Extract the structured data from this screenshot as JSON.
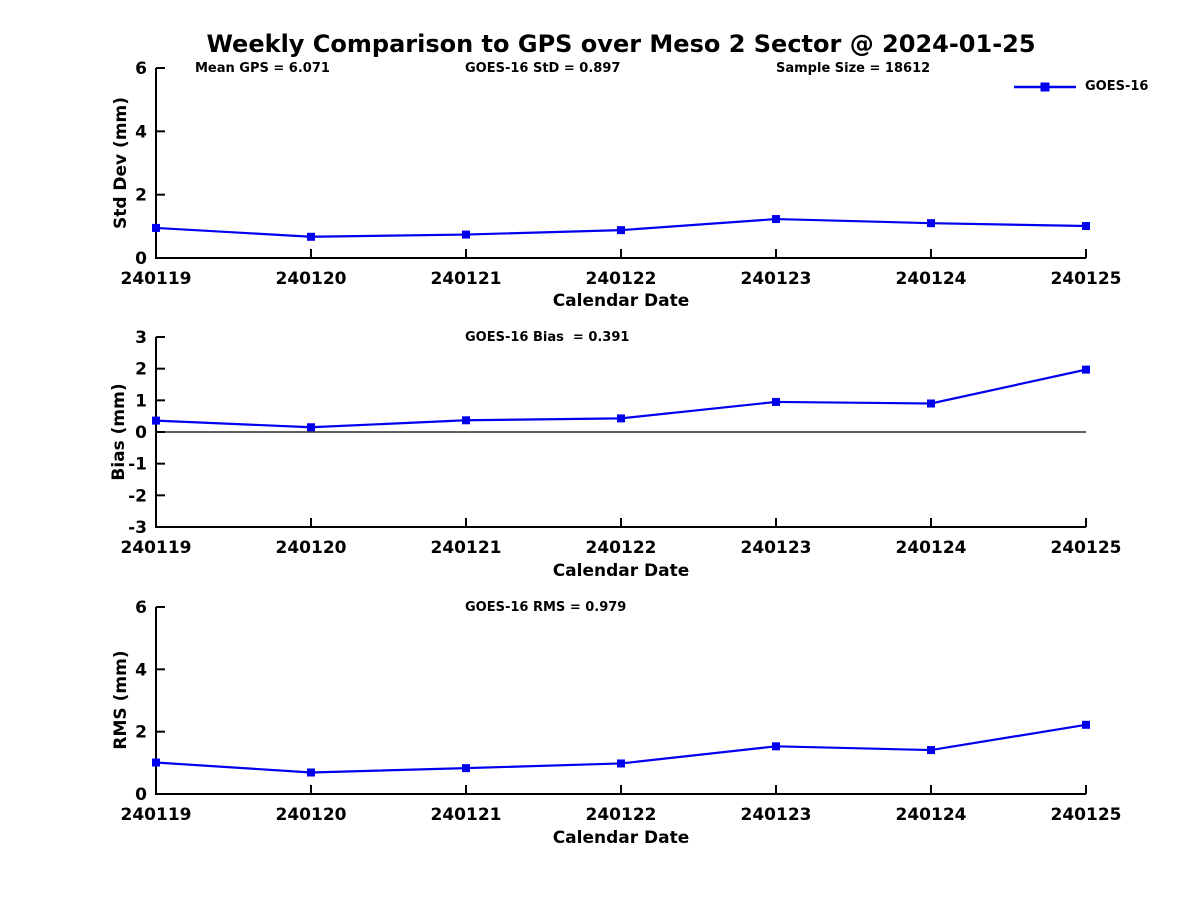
{
  "title": "Weekly Comparison to GPS over Meso 2 Sector @ 2024-01-25",
  "legend": {
    "label": "GOES-16",
    "position": "top-right"
  },
  "colors": {
    "line": "#0000EE",
    "marker": "#0000EE",
    "axis": "#000000",
    "text": "#000000",
    "zero_line": "#000000",
    "background": "#FFFFFF"
  },
  "chart_data": [
    {
      "type": "line",
      "name": "std-dev",
      "ylabel": "Std Dev (mm)",
      "xlabel": "Calendar Date",
      "categories": [
        "240119",
        "240120",
        "240121",
        "240122",
        "240123",
        "240124",
        "240125"
      ],
      "series": [
        {
          "name": "GOES-16",
          "color": "#0000EE",
          "marker": "square",
          "values": [
            0.95,
            0.67,
            0.74,
            0.88,
            1.23,
            1.1,
            1.01
          ]
        }
      ],
      "ylim": [
        0,
        6
      ],
      "yticks": [
        0,
        2,
        4,
        6
      ],
      "grid": false,
      "zero_line": false,
      "annotations": [
        "Mean GPS = 6.071",
        "GOES-16 StD = 0.897",
        "Sample Size = 18612"
      ]
    },
    {
      "type": "line",
      "name": "bias",
      "ylabel": "Bias (mm)",
      "xlabel": "Calendar Date",
      "categories": [
        "240119",
        "240120",
        "240121",
        "240122",
        "240123",
        "240124",
        "240125"
      ],
      "series": [
        {
          "name": "GOES-16",
          "color": "#0000EE",
          "marker": "square",
          "values": [
            0.36,
            0.15,
            0.37,
            0.43,
            0.95,
            0.9,
            1.97
          ]
        }
      ],
      "ylim": [
        -3,
        3
      ],
      "yticks": [
        -3,
        -2,
        -1,
        0,
        1,
        2,
        3
      ],
      "grid": false,
      "zero_line": true,
      "annotations": [
        "GOES-16 Bias  = 0.391"
      ]
    },
    {
      "type": "line",
      "name": "rms",
      "ylabel": "RMS (mm)",
      "xlabel": "Calendar Date",
      "categories": [
        "240119",
        "240120",
        "240121",
        "240122",
        "240123",
        "240124",
        "240125"
      ],
      "series": [
        {
          "name": "GOES-16",
          "color": "#0000EE",
          "marker": "square",
          "values": [
            1.01,
            0.69,
            0.83,
            0.98,
            1.53,
            1.41,
            2.22
          ]
        }
      ],
      "ylim": [
        0,
        6
      ],
      "yticks": [
        0,
        2,
        4,
        6
      ],
      "grid": false,
      "zero_line": false,
      "annotations": [
        "GOES-16 RMS = 0.979"
      ]
    }
  ]
}
